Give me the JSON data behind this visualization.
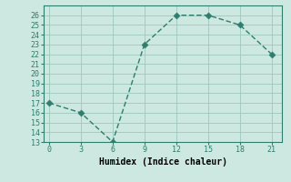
{
  "xlabel": "Humidex (Indice chaleur)",
  "x": [
    0,
    3,
    6,
    9,
    12,
    15,
    18,
    21
  ],
  "y": [
    17,
    16,
    13,
    23,
    26,
    26,
    25,
    22
  ],
  "line_color": "#2e7d6d",
  "bg_color": "#cce8e0",
  "grid_color": "#9dc8bc",
  "xlim": [
    -0.5,
    22
  ],
  "ylim": [
    13,
    27
  ],
  "xticks": [
    0,
    3,
    6,
    9,
    12,
    15,
    18,
    21
  ],
  "yticks": [
    13,
    14,
    15,
    16,
    17,
    18,
    19,
    20,
    21,
    22,
    23,
    24,
    25,
    26
  ],
  "markersize": 3.5,
  "linewidth": 1.0,
  "font_family": "monospace",
  "tick_fontsize": 6.0,
  "xlabel_fontsize": 7.0
}
